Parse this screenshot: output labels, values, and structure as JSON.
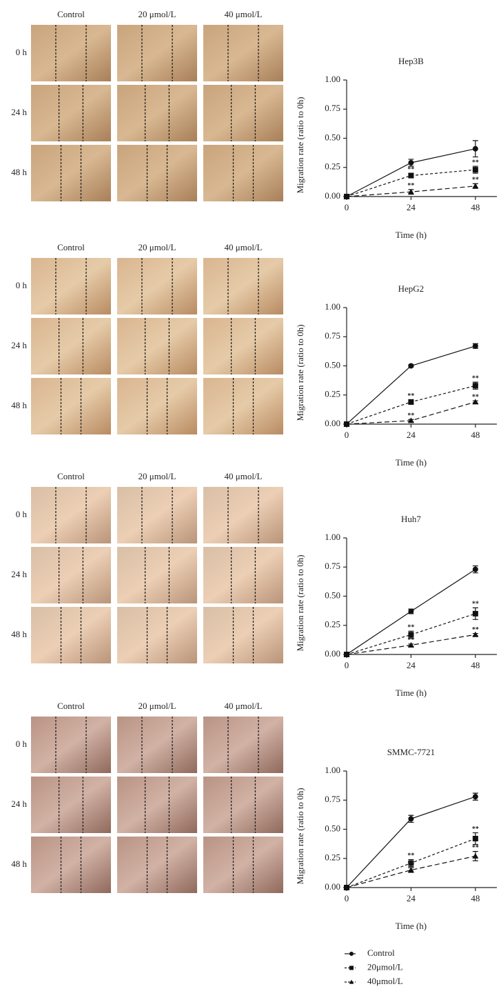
{
  "panels": [
    {
      "columns": [
        "Control",
        "20 μmol/L",
        "40 μmol/L"
      ],
      "rows": [
        "0 h",
        "24 h",
        "48 h"
      ]
    },
    {
      "columns": [
        "Control",
        "20 μmol/L",
        "40 μmol/L"
      ],
      "rows": [
        "0 h",
        "24 h",
        "48 h"
      ]
    },
    {
      "columns": [
        "Control",
        "20 μmol/L",
        "40 μmol/L"
      ],
      "rows": [
        "0 h",
        "24 h",
        "48 h"
      ]
    },
    {
      "columns": [
        "Control",
        "20 μmol/L",
        "40 μmol/L"
      ],
      "rows": [
        "0 h",
        "24 h",
        "48 h"
      ]
    }
  ],
  "chart_data": [
    {
      "type": "line",
      "title": "Hep3B",
      "xlabel": "Time (h)",
      "ylabel": "Migration rate (ratio to 0h)",
      "x": [
        0,
        24,
        48
      ],
      "xlim": [
        0,
        56
      ],
      "xticks": [
        0,
        24,
        48
      ],
      "ylim": [
        0,
        1
      ],
      "yticks": [
        {
          "value": 0,
          "label": "0.00"
        },
        {
          "value": 0.25,
          "label": "0.25"
        },
        {
          "value": 0.5,
          "label": "0.50"
        },
        {
          "value": 0.75,
          "label": "0.75"
        },
        {
          "value": 1,
          "label": "1.00"
        }
      ],
      "legend_position": "bottom",
      "series": [
        {
          "name": "Control",
          "color": "#111",
          "marker": "circle",
          "dash": "none",
          "values": [
            0,
            0.29,
            0.41
          ],
          "errors": [
            0,
            0.03,
            0.07
          ]
        },
        {
          "name": "20μmol/L",
          "color": "#111",
          "marker": "square",
          "dash": "4 3",
          "values": [
            0,
            0.18,
            0.23
          ],
          "errors": [
            0,
            0.02,
            0.03
          ],
          "annotations": [
            null,
            "**",
            "**"
          ]
        },
        {
          "name": "40μmol/L",
          "color": "#111",
          "marker": "triangle",
          "dash": "7 4",
          "values": [
            0,
            0.04,
            0.09
          ],
          "errors": [
            0,
            0.02,
            0.02
          ],
          "annotations": [
            null,
            "**",
            "**"
          ]
        }
      ]
    },
    {
      "type": "line",
      "title": "HepG2",
      "xlabel": "Time (h)",
      "ylabel": "Migration rate (ratio to 0h)",
      "x": [
        0,
        24,
        48
      ],
      "xlim": [
        0,
        56
      ],
      "xticks": [
        0,
        24,
        48
      ],
      "ylim": [
        0,
        1
      ],
      "yticks": [
        {
          "value": 0,
          "label": "0.00"
        },
        {
          "value": 0.25,
          "label": "0.25"
        },
        {
          "value": 0.5,
          "label": "0.50"
        },
        {
          "value": 0.75,
          "label": "0.75"
        },
        {
          "value": 1,
          "label": "1.00"
        }
      ],
      "series": [
        {
          "color": "#111",
          "marker": "circle",
          "dash": "none",
          "values": [
            0,
            0.5,
            0.67
          ],
          "errors": [
            0,
            0.01,
            0.02
          ]
        },
        {
          "color": "#111",
          "marker": "square",
          "dash": "4 3",
          "values": [
            0,
            0.19,
            0.33
          ],
          "errors": [
            0,
            0.02,
            0.03
          ],
          "annotations": [
            null,
            "**",
            "**"
          ]
        },
        {
          "color": "#111",
          "marker": "triangle",
          "dash": "7 4",
          "values": [
            0,
            0.03,
            0.19
          ],
          "errors": [
            0,
            0.01,
            0.01
          ],
          "annotations": [
            null,
            "**",
            "**"
          ]
        }
      ]
    },
    {
      "type": "line",
      "title": "Huh7",
      "xlabel": "Time (h)",
      "ylabel": "Migration rate (ratio to 0h)",
      "x": [
        0,
        24,
        48
      ],
      "xlim": [
        0,
        56
      ],
      "xticks": [
        0,
        24,
        48
      ],
      "ylim": [
        0,
        1
      ],
      "yticks": [
        {
          "value": 0,
          "label": "0.00"
        },
        {
          "value": 0.25,
          "label": "0.25"
        },
        {
          "value": 0.5,
          "label": "0.50"
        },
        {
          "value": 0.75,
          "label": "0.75"
        },
        {
          "value": 1,
          "label": "1.00"
        }
      ],
      "series": [
        {
          "color": "#111",
          "marker": "circle",
          "dash": "none",
          "values": [
            0,
            0.37,
            0.73
          ],
          "errors": [
            0,
            0.02,
            0.03
          ]
        },
        {
          "color": "#111",
          "marker": "square",
          "dash": "4 3",
          "values": [
            0,
            0.17,
            0.35
          ],
          "errors": [
            0,
            0.03,
            0.05
          ],
          "annotations": [
            null,
            "**",
            "**"
          ]
        },
        {
          "color": "#111",
          "marker": "triangle",
          "dash": "7 4",
          "values": [
            0,
            0.08,
            0.17
          ],
          "errors": [
            0,
            0.01,
            0.01
          ],
          "annotations": [
            null,
            "**",
            "**"
          ]
        }
      ]
    },
    {
      "type": "line",
      "title": "SMMC-7721",
      "xlabel": "Time (h)",
      "ylabel": "Migration rate (ratio to 0h)",
      "x": [
        0,
        24,
        48
      ],
      "xlim": [
        0,
        56
      ],
      "xticks": [
        0,
        24,
        48
      ],
      "ylim": [
        0,
        1
      ],
      "yticks": [
        {
          "value": 0,
          "label": "0.00"
        },
        {
          "value": 0.25,
          "label": "0.25"
        },
        {
          "value": 0.5,
          "label": "0.50"
        },
        {
          "value": 0.75,
          "label": "0.75"
        },
        {
          "value": 1,
          "label": "1.00"
        }
      ],
      "series": [
        {
          "color": "#111",
          "marker": "circle",
          "dash": "none",
          "values": [
            0,
            0.59,
            0.78
          ],
          "errors": [
            0,
            0.03,
            0.03
          ]
        },
        {
          "color": "#111",
          "marker": "square",
          "dash": "4 3",
          "values": [
            0,
            0.21,
            0.42
          ],
          "errors": [
            0,
            0.03,
            0.05
          ],
          "annotations": [
            null,
            "**",
            "**"
          ]
        },
        {
          "color": "#111",
          "marker": "triangle",
          "dash": "7 4",
          "values": [
            0,
            0.15,
            0.27
          ],
          "errors": [
            0,
            0.02,
            0.04
          ],
          "annotations": [
            null,
            "**",
            "**"
          ]
        }
      ]
    }
  ]
}
